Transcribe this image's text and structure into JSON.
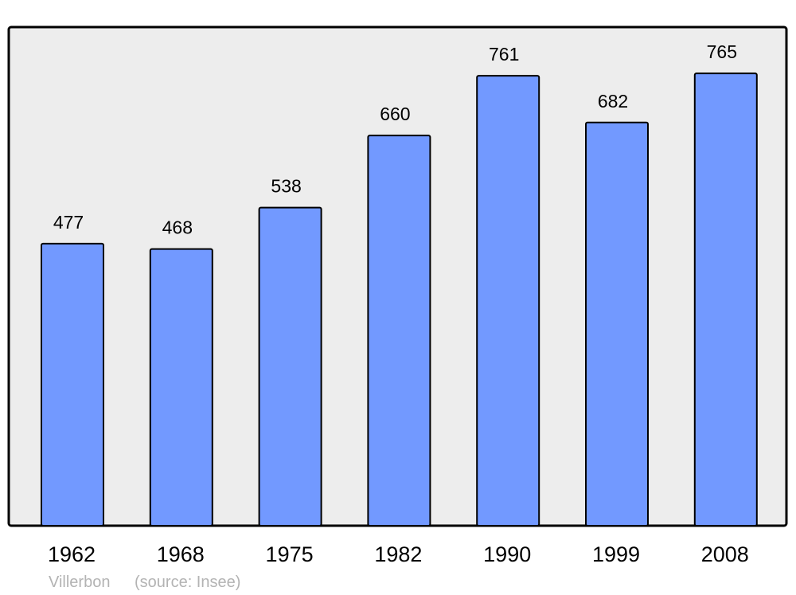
{
  "chart_data": {
    "type": "bar",
    "categories": [
      "1962",
      "1968",
      "1975",
      "1982",
      "1990",
      "1999",
      "2008"
    ],
    "values": [
      477,
      468,
      538,
      660,
      761,
      682,
      765
    ],
    "title": "",
    "xlabel": "",
    "ylabel": "",
    "ylim": [
      0,
      842
    ],
    "grid": false,
    "data_labels": true,
    "colors": {
      "bar": "#7299ff",
      "plot_background": "#ededed",
      "border": "#000000",
      "footer_text": "#b3b3b3"
    }
  },
  "footer": {
    "place": "Villerbon",
    "source": "(source: Insee)"
  }
}
